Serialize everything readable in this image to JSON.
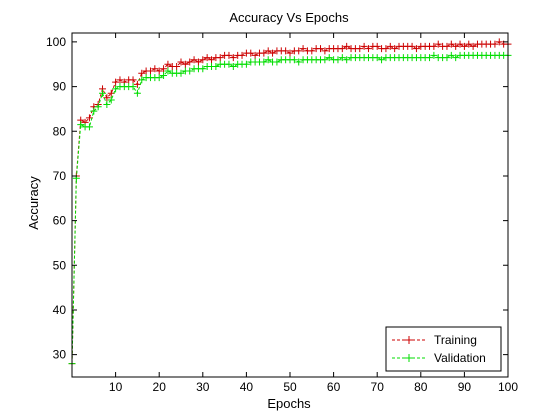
{
  "chart_data": {
    "type": "line",
    "title": "Accuracy Vs Epochs",
    "xlabel": "Epochs",
    "ylabel": "Accuracy",
    "xlim": [
      0,
      100
    ],
    "ylim": [
      25,
      102
    ],
    "xticks": [
      10,
      20,
      30,
      40,
      50,
      60,
      70,
      80,
      90,
      100
    ],
    "yticks": [
      30,
      40,
      50,
      60,
      70,
      80,
      90,
      100
    ],
    "grid": false,
    "legend_position": "bottom-right",
    "series": [
      {
        "name": "Training",
        "color": "#cc0000",
        "line_style": "dashed",
        "marker": "plus",
        "x": [
          0,
          1,
          2,
          3,
          4,
          5,
          6,
          7,
          8,
          9,
          10,
          11,
          12,
          13,
          14,
          15,
          16,
          17,
          18,
          19,
          20,
          21,
          22,
          23,
          24,
          25,
          26,
          27,
          28,
          29,
          30,
          31,
          32,
          33,
          34,
          35,
          36,
          37,
          38,
          39,
          40,
          41,
          42,
          43,
          44,
          45,
          46,
          47,
          48,
          49,
          50,
          51,
          52,
          53,
          54,
          55,
          56,
          57,
          58,
          59,
          60,
          61,
          62,
          63,
          64,
          65,
          66,
          67,
          68,
          69,
          70,
          71,
          72,
          73,
          74,
          75,
          76,
          77,
          78,
          79,
          80,
          81,
          82,
          83,
          84,
          85,
          86,
          87,
          88,
          89,
          90,
          91,
          92,
          93,
          94,
          95,
          96,
          97,
          98,
          99,
          100
        ],
        "y": [
          28,
          70,
          82.5,
          82,
          83,
          85.5,
          86,
          89.5,
          87.5,
          88.5,
          91,
          91.5,
          91,
          91.5,
          91.5,
          90.5,
          93,
          93.5,
          93.5,
          94,
          93.5,
          94,
          95,
          94.5,
          94.5,
          95.5,
          95,
          95.5,
          96,
          95.5,
          96,
          96.5,
          96,
          96.5,
          96.5,
          97,
          97,
          96.5,
          97,
          97,
          97.5,
          97.5,
          97,
          97.5,
          97.5,
          98,
          97.5,
          98,
          98,
          98,
          97.5,
          98,
          98,
          98.5,
          98,
          98,
          98.5,
          98.5,
          98,
          98.5,
          98.5,
          98.5,
          98.5,
          99,
          98.5,
          98.5,
          98.5,
          99,
          98.5,
          99,
          99,
          98.5,
          98.5,
          99,
          98.5,
          99,
          99,
          99,
          99,
          98.5,
          99,
          99,
          99,
          99,
          99.5,
          99,
          99,
          99.5,
          99,
          99.5,
          99,
          99.5,
          99,
          99.5,
          99.5,
          99.5,
          99.5,
          99.5,
          100,
          99.5,
          99.5
        ]
      },
      {
        "name": "Validation",
        "color": "#00dd00",
        "line_style": "dashed",
        "marker": "plus",
        "x": [
          0,
          1,
          2,
          3,
          4,
          5,
          6,
          7,
          8,
          9,
          10,
          11,
          12,
          13,
          14,
          15,
          16,
          17,
          18,
          19,
          20,
          21,
          22,
          23,
          24,
          25,
          26,
          27,
          28,
          29,
          30,
          31,
          32,
          33,
          34,
          35,
          36,
          37,
          38,
          39,
          40,
          41,
          42,
          43,
          44,
          45,
          46,
          47,
          48,
          49,
          50,
          51,
          52,
          53,
          54,
          55,
          56,
          57,
          58,
          59,
          60,
          61,
          62,
          63,
          64,
          65,
          66,
          67,
          68,
          69,
          70,
          71,
          72,
          73,
          74,
          75,
          76,
          77,
          78,
          79,
          80,
          81,
          82,
          83,
          84,
          85,
          86,
          87,
          88,
          89,
          90,
          91,
          92,
          93,
          94,
          95,
          96,
          97,
          98,
          99,
          100
        ],
        "y": [
          28,
          69.5,
          81.5,
          81,
          81,
          84.5,
          85.5,
          88.5,
          86,
          87,
          89.5,
          90,
          90,
          90,
          90,
          88.5,
          91.5,
          92,
          92,
          92,
          92,
          92.5,
          93.5,
          93,
          93,
          93,
          93.5,
          93.5,
          94,
          94,
          94,
          94.5,
          94.5,
          94.5,
          95,
          95,
          95,
          94.5,
          95,
          95,
          95,
          95.5,
          95.5,
          95.5,
          95.5,
          96,
          95.5,
          95.5,
          96,
          96,
          96,
          96,
          95.5,
          96,
          96,
          96,
          96,
          96,
          96,
          96.5,
          96,
          96,
          96.5,
          96,
          96.5,
          96.5,
          96.5,
          96.5,
          96.5,
          96.5,
          96.5,
          96,
          96.5,
          96.5,
          96.5,
          96.5,
          96.5,
          96.5,
          96.5,
          96.5,
          96.5,
          96.5,
          96.5,
          97,
          96.5,
          96.5,
          96.5,
          97,
          96.5,
          97,
          97,
          97,
          97,
          97,
          97,
          97,
          97,
          97,
          97,
          97,
          97
        ]
      }
    ]
  }
}
